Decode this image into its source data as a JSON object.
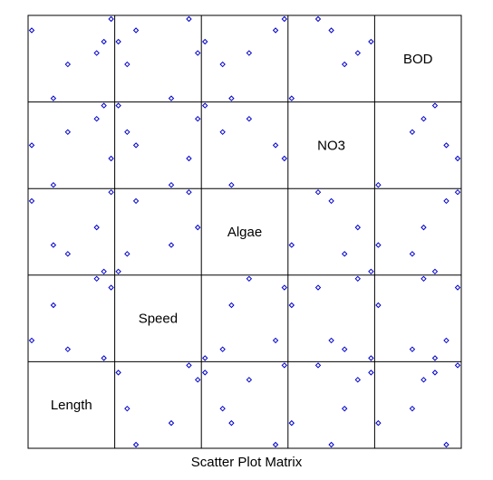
{
  "chart_data": {
    "type": "scatter",
    "title": "Scatter Plot Matrix",
    "variables": [
      "BOD",
      "NO3",
      "Algae",
      "Speed",
      "Length"
    ],
    "point_color": "#0000cc",
    "grid": false,
    "observations": [
      {
        "Length": 0,
        "Speed": 2,
        "Algae": 8,
        "NO3": 3,
        "BOD": 6
      },
      {
        "Length": 3,
        "Speed": 6,
        "Algae": 3,
        "NO3": 0,
        "BOD": 0
      },
      {
        "Length": 5,
        "Speed": 1,
        "Algae": 2,
        "NO3": 4,
        "BOD": 3
      },
      {
        "Length": 9,
        "Speed": 9,
        "Algae": 5,
        "NO3": 5,
        "BOD": 4
      },
      {
        "Length": 10,
        "Speed": 0,
        "Algae": 0,
        "NO3": 6,
        "BOD": 5
      },
      {
        "Length": 11,
        "Speed": 8,
        "Algae": 9,
        "NO3": 2,
        "BOD": 7
      }
    ]
  }
}
